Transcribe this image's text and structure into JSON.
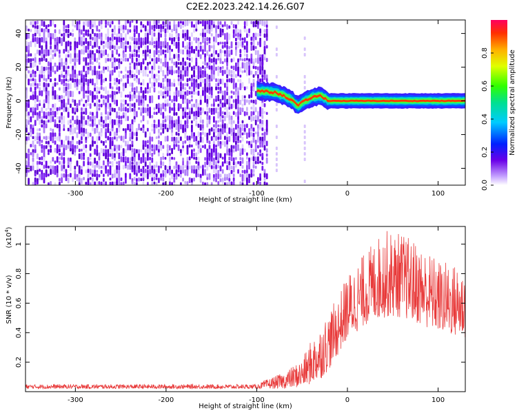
{
  "title": "C2E2.2023.242.14.26.G07",
  "chart_data": [
    {
      "type": "heatmap",
      "title": "C2E2.2023.242.14.26.G07",
      "xlabel": "Height of straight line (km)",
      "ylabel": "Frequency (Hz)",
      "xlim": [
        -355,
        130
      ],
      "ylim": [
        -50,
        48
      ],
      "x_ticks": [
        -300,
        -200,
        -100,
        0,
        100
      ],
      "y_ticks": [
        -40,
        -20,
        0,
        20,
        40
      ],
      "grid": false,
      "colorbar": {
        "label": "Normalized spectral amplitude",
        "range": [
          0.0,
          1.0
        ],
        "ticks": [
          "0.0",
          "0.2",
          "0.4",
          "0.6",
          "0.8"
        ],
        "colormap": "rainbow"
      },
      "regions": [
        {
          "name": "noise",
          "x_range": [
            -355,
            -88
          ],
          "y_range": [
            -50,
            48
          ],
          "amplitude": 0.2
        },
        {
          "name": "signal",
          "x_range": [
            -100,
            130
          ],
          "center_frequency": [
            {
              "x": -100,
              "y": 6
            },
            {
              "x": -80,
              "y": 5
            },
            {
              "x": -70,
              "y": 3
            },
            {
              "x": -60,
              "y": 0
            },
            {
              "x": -55,
              "y": -3
            },
            {
              "x": -50,
              "y": -1
            },
            {
              "x": -40,
              "y": 2
            },
            {
              "x": -30,
              "y": 3
            },
            {
              "x": -20,
              "y": 0
            },
            {
              "x": 0,
              "y": 0
            },
            {
              "x": 50,
              "y": 0
            },
            {
              "x": 130,
              "y": 0
            }
          ],
          "peak_amplitude": 0.9
        }
      ]
    },
    {
      "type": "line",
      "title": "",
      "xlabel": "Height of straight line (km)",
      "ylabel": "SNR (10 * v/v)",
      "y_multiplier": "(x10^4)",
      "xlim": [
        -355,
        130
      ],
      "ylim": [
        0,
        1.12
      ],
      "x_ticks": [
        -300,
        -200,
        -100,
        0,
        100
      ],
      "y_ticks": [
        0.2,
        0.4,
        0.6,
        0.8,
        1.0
      ],
      "grid": false,
      "series": [
        {
          "name": "",
          "color": "#e83a3a",
          "envelope": [
            {
              "x": -355,
              "low": 0.02,
              "high": 0.05
            },
            {
              "x": -100,
              "low": 0.02,
              "high": 0.05
            },
            {
              "x": -90,
              "low": 0.02,
              "high": 0.08
            },
            {
              "x": -70,
              "low": 0.02,
              "high": 0.13
            },
            {
              "x": -50,
              "low": 0.03,
              "high": 0.22
            },
            {
              "x": -40,
              "low": 0.05,
              "high": 0.35
            },
            {
              "x": -30,
              "low": 0.08,
              "high": 0.45
            },
            {
              "x": -20,
              "low": 0.15,
              "high": 0.55
            },
            {
              "x": -10,
              "low": 0.25,
              "high": 0.65
            },
            {
              "x": 0,
              "low": 0.35,
              "high": 0.8
            },
            {
              "x": 20,
              "low": 0.45,
              "high": 0.95
            },
            {
              "x": 40,
              "low": 0.5,
              "high": 1.1
            },
            {
              "x": 60,
              "low": 0.5,
              "high": 1.08
            },
            {
              "x": 80,
              "low": 0.45,
              "high": 1.0
            },
            {
              "x": 100,
              "low": 0.4,
              "high": 0.9
            },
            {
              "x": 130,
              "low": 0.35,
              "high": 0.85
            }
          ]
        }
      ]
    }
  ],
  "labels": {
    "bottom_multiplier_base": "(x10",
    "bottom_multiplier_exp": "4",
    "bottom_multiplier_close": ")"
  }
}
